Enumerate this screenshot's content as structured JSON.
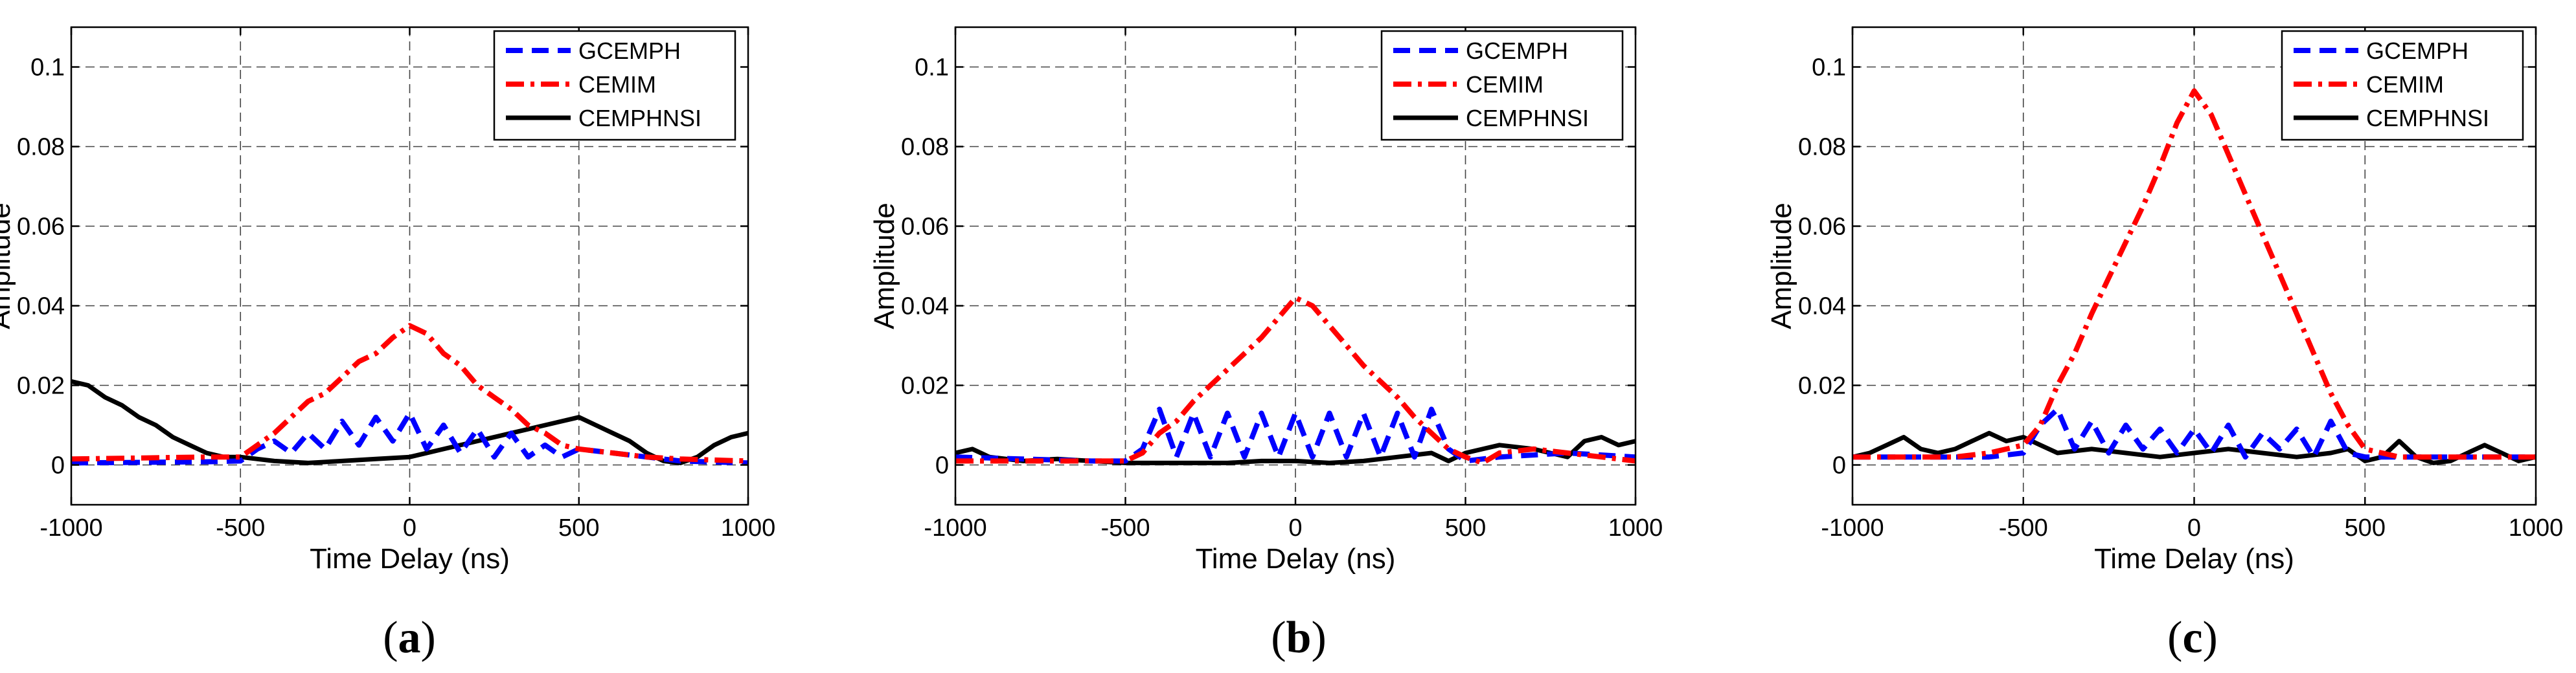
{
  "figure": {
    "panels": [
      {
        "caption_letter": "a",
        "title": "",
        "xlabel": "Time Delay (ns)",
        "ylabel": "Amplitude"
      },
      {
        "caption_letter": "b",
        "title": "",
        "xlabel": "Time Delay (ns)",
        "ylabel": "Amplitude"
      },
      {
        "caption_letter": "c",
        "title": "",
        "xlabel": "Time Delay (ns)",
        "ylabel": "Amplitude"
      }
    ],
    "legend_entries": [
      "GCEMPH",
      "CEMIM",
      "CEMPHNSI"
    ],
    "colors": {
      "GCEMPH": "#0000ff",
      "CEMIM": "#ff0000",
      "CEMPHNSI": "#000000",
      "grid": "#444444",
      "axes": "#000000"
    }
  },
  "chart_data": [
    {
      "type": "line",
      "panel": "a",
      "title": "",
      "xlabel": "Time Delay (ns)",
      "ylabel": "Amplitude",
      "xlim": [
        -1000,
        1000
      ],
      "ylim": [
        -0.01,
        0.11
      ],
      "xticks": [
        -1000,
        -500,
        0,
        500,
        1000
      ],
      "yticks": [
        0,
        0.02,
        0.04,
        0.06,
        0.08,
        0.1
      ],
      "xtick_labels": [
        "-1000",
        "-500",
        "0",
        "500",
        "1000"
      ],
      "ytick_labels": [
        "0",
        "0.02",
        "0.04",
        "0.06",
        "0.08",
        "0.1"
      ],
      "grid": true,
      "legend_position": "top-right",
      "series": [
        {
          "name": "GCEMPH",
          "style": "dashed",
          "x": [
            -1000,
            -600,
            -500,
            -450,
            -400,
            -350,
            -300,
            -250,
            -200,
            -150,
            -100,
            -50,
            0,
            50,
            100,
            150,
            200,
            250,
            300,
            350,
            400,
            450,
            500,
            600,
            700,
            800,
            1000
          ],
          "values": [
            0.0005,
            0.0008,
            0.001,
            0.004,
            0.006,
            0.003,
            0.008,
            0.004,
            0.011,
            0.005,
            0.012,
            0.006,
            0.013,
            0.004,
            0.01,
            0.003,
            0.009,
            0.002,
            0.008,
            0.002,
            0.005,
            0.002,
            0.004,
            0.003,
            0.002,
            0.001,
            0.0005
          ]
        },
        {
          "name": "CEMIM",
          "style": "dash-dot",
          "x": [
            -1000,
            -600,
            -500,
            -450,
            -400,
            -350,
            -300,
            -250,
            -200,
            -150,
            -100,
            -50,
            0,
            50,
            100,
            150,
            200,
            250,
            300,
            350,
            400,
            450,
            500,
            600,
            700,
            800,
            1000
          ],
          "values": [
            0.0015,
            0.002,
            0.002,
            0.005,
            0.008,
            0.012,
            0.016,
            0.018,
            0.022,
            0.026,
            0.028,
            0.032,
            0.035,
            0.033,
            0.028,
            0.025,
            0.02,
            0.017,
            0.014,
            0.01,
            0.008,
            0.005,
            0.004,
            0.003,
            0.002,
            0.0015,
            0.001
          ]
        },
        {
          "name": "CEMPHNSI",
          "style": "solid",
          "x": [
            -1000,
            -950,
            -900,
            -850,
            -800,
            -750,
            -700,
            -650,
            -600,
            -550,
            -500,
            -400,
            -300,
            -200,
            -100,
            0,
            100,
            200,
            300,
            400,
            450,
            500,
            550,
            600,
            650,
            700,
            750,
            800,
            850,
            900,
            950,
            1000
          ],
          "values": [
            0.021,
            0.02,
            0.017,
            0.015,
            0.012,
            0.01,
            0.007,
            0.005,
            0.003,
            0.002,
            0.002,
            0.001,
            0.0005,
            0.001,
            0.0015,
            0.002,
            0.004,
            0.006,
            0.008,
            0.01,
            0.011,
            0.012,
            0.01,
            0.008,
            0.006,
            0.003,
            0.001,
            0.0005,
            0.002,
            0.005,
            0.007,
            0.008
          ]
        }
      ]
    },
    {
      "type": "line",
      "panel": "b",
      "title": "",
      "xlabel": "Time Delay (ns)",
      "ylabel": "Amplitude",
      "xlim": [
        -1000,
        1000
      ],
      "ylim": [
        -0.01,
        0.11
      ],
      "xticks": [
        -1000,
        -500,
        0,
        500,
        1000
      ],
      "yticks": [
        0,
        0.02,
        0.04,
        0.06,
        0.08,
        0.1
      ],
      "xtick_labels": [
        "-1000",
        "-500",
        "0",
        "500",
        "1000"
      ],
      "ytick_labels": [
        "0",
        "0.02",
        "0.04",
        "0.06",
        "0.08",
        "0.1"
      ],
      "grid": true,
      "legend_position": "top-right",
      "series": [
        {
          "name": "GCEMPH",
          "style": "dashed",
          "x": [
            -1000,
            -600,
            -500,
            -450,
            -400,
            -350,
            -300,
            -250,
            -200,
            -150,
            -100,
            -50,
            0,
            50,
            100,
            150,
            200,
            250,
            300,
            350,
            400,
            450,
            500,
            600,
            800,
            1000
          ],
          "values": [
            0.002,
            0.001,
            0.001,
            0.004,
            0.014,
            0.002,
            0.013,
            0.002,
            0.013,
            0.002,
            0.013,
            0.002,
            0.013,
            0.002,
            0.013,
            0.002,
            0.013,
            0.002,
            0.013,
            0.002,
            0.014,
            0.004,
            0.001,
            0.002,
            0.003,
            0.002
          ]
        },
        {
          "name": "CEMIM",
          "style": "dash-dot",
          "x": [
            -1000,
            -600,
            -500,
            -450,
            -400,
            -350,
            -300,
            -250,
            -200,
            -150,
            -100,
            -50,
            0,
            50,
            100,
            150,
            200,
            250,
            300,
            350,
            400,
            450,
            500,
            550,
            600,
            700,
            800,
            900,
            1000
          ],
          "values": [
            0.001,
            0.001,
            0.001,
            0.003,
            0.008,
            0.011,
            0.016,
            0.02,
            0.024,
            0.028,
            0.032,
            0.037,
            0.042,
            0.04,
            0.035,
            0.03,
            0.025,
            0.021,
            0.017,
            0.012,
            0.008,
            0.004,
            0.002,
            0.0005,
            0.003,
            0.004,
            0.003,
            0.002,
            0.001
          ]
        },
        {
          "name": "CEMPHNSI",
          "style": "solid",
          "x": [
            -1000,
            -950,
            -900,
            -800,
            -700,
            -600,
            -500,
            -400,
            -300,
            -200,
            -100,
            0,
            100,
            200,
            300,
            400,
            450,
            500,
            550,
            600,
            700,
            800,
            850,
            900,
            950,
            1000
          ],
          "values": [
            0.003,
            0.004,
            0.002,
            0.001,
            0.0015,
            0.001,
            0.0005,
            0.0005,
            0.0005,
            0.0005,
            0.001,
            0.001,
            0.0005,
            0.001,
            0.002,
            0.003,
            0.001,
            0.003,
            0.004,
            0.005,
            0.004,
            0.002,
            0.006,
            0.007,
            0.005,
            0.006
          ]
        }
      ]
    },
    {
      "type": "line",
      "panel": "c",
      "title": "",
      "xlabel": "Time Delay (ns)",
      "ylabel": "Amplitude",
      "xlim": [
        -1000,
        1000
      ],
      "ylim": [
        -0.01,
        0.11
      ],
      "xticks": [
        -1000,
        -500,
        0,
        500,
        1000
      ],
      "yticks": [
        0,
        0.02,
        0.04,
        0.06,
        0.08,
        0.1
      ],
      "xtick_labels": [
        "-1000",
        "-500",
        "0",
        "500",
        "1000"
      ],
      "ytick_labels": [
        "0",
        "0.02",
        "0.04",
        "0.06",
        "0.08",
        "0.1"
      ],
      "grid": true,
      "legend_position": "top-right",
      "series": [
        {
          "name": "GCEMPH",
          "style": "dashed",
          "x": [
            -1000,
            -600,
            -500,
            -450,
            -400,
            -350,
            -300,
            -250,
            -200,
            -150,
            -100,
            -50,
            0,
            50,
            100,
            150,
            200,
            250,
            300,
            350,
            400,
            450,
            500,
            600,
            800,
            1000
          ],
          "values": [
            0.002,
            0.002,
            0.003,
            0.01,
            0.014,
            0.004,
            0.011,
            0.003,
            0.01,
            0.004,
            0.009,
            0.003,
            0.009,
            0.003,
            0.01,
            0.002,
            0.008,
            0.004,
            0.009,
            0.002,
            0.011,
            0.003,
            0.002,
            0.002,
            0.002,
            0.002
          ]
        },
        {
          "name": "CEMIM",
          "style": "dash-dot",
          "x": [
            -1000,
            -700,
            -600,
            -500,
            -450,
            -400,
            -350,
            -300,
            -250,
            -200,
            -150,
            -100,
            -50,
            0,
            50,
            100,
            150,
            200,
            250,
            300,
            350,
            400,
            450,
            500,
            600,
            700,
            800,
            1000
          ],
          "values": [
            0.002,
            0.002,
            0.003,
            0.005,
            0.01,
            0.02,
            0.028,
            0.038,
            0.047,
            0.056,
            0.065,
            0.075,
            0.086,
            0.094,
            0.088,
            0.078,
            0.068,
            0.058,
            0.048,
            0.038,
            0.028,
            0.018,
            0.01,
            0.004,
            0.002,
            0.002,
            0.002,
            0.002
          ]
        },
        {
          "name": "CEMPHNSI",
          "style": "solid",
          "x": [
            -1000,
            -950,
            -900,
            -850,
            -800,
            -750,
            -700,
            -650,
            -600,
            -550,
            -500,
            -450,
            -400,
            -300,
            -200,
            -100,
            0,
            100,
            200,
            300,
            400,
            450,
            500,
            550,
            600,
            650,
            700,
            750,
            800,
            850,
            900,
            950,
            1000
          ],
          "values": [
            0.002,
            0.003,
            0.005,
            0.007,
            0.004,
            0.003,
            0.004,
            0.006,
            0.008,
            0.006,
            0.007,
            0.005,
            0.003,
            0.004,
            0.003,
            0.002,
            0.003,
            0.004,
            0.003,
            0.002,
            0.003,
            0.004,
            0.001,
            0.002,
            0.006,
            0.002,
            0.0005,
            0.001,
            0.003,
            0.005,
            0.003,
            0.001,
            0.002
          ]
        }
      ]
    }
  ]
}
